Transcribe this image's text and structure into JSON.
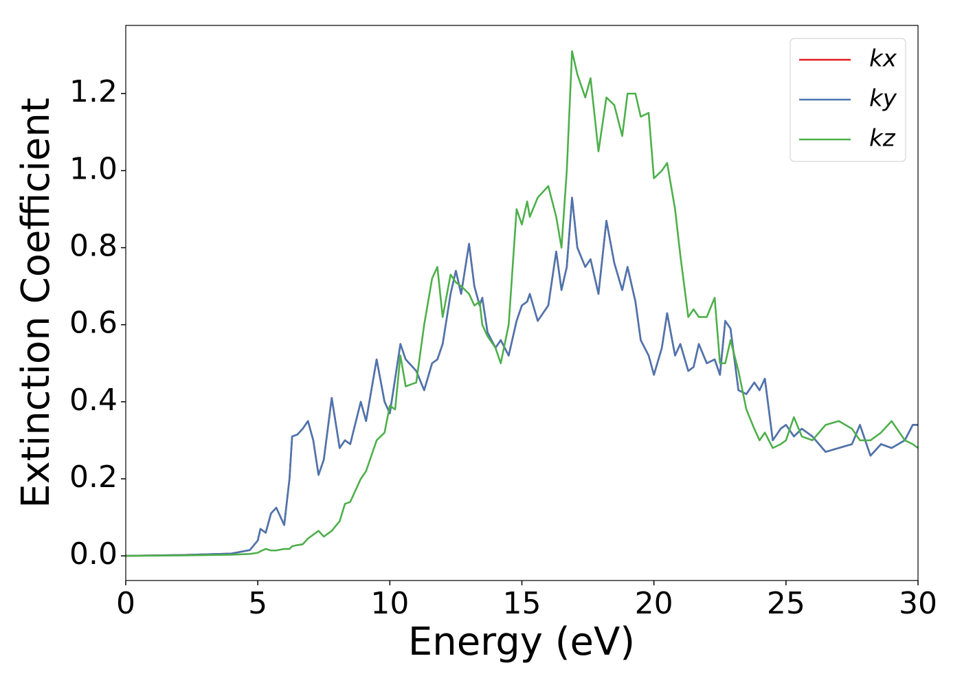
{
  "chart_data": {
    "type": "line",
    "xlabel": "Energy (eV)",
    "ylabel": "Extinction Coefficient",
    "xlim": [
      0,
      30
    ],
    "ylim": [
      -0.064,
      1.377
    ],
    "xticks": [
      0,
      5,
      10,
      15,
      20,
      25,
      30
    ],
    "yticks": [
      {
        "value": 0,
        "label": "0.0"
      },
      0.2,
      0.4,
      0.6,
      0.8,
      {
        "value": 1,
        "label": "1.0"
      },
      1.2
    ],
    "grid": false,
    "legend": "upper right",
    "x": [
      0,
      2,
      4,
      4.7,
      5.0,
      5.1,
      5.3,
      5.5,
      5.7,
      6.0,
      6.2,
      6.3,
      6.5,
      6.7,
      6.9,
      7.1,
      7.3,
      7.5,
      7.8,
      8.1,
      8.3,
      8.5,
      8.9,
      9.1,
      9.5,
      9.8,
      10,
      10.2,
      10.4,
      10.6,
      11,
      11.3,
      11.6,
      11.8,
      12,
      12.3,
      12.5,
      12.7,
      13,
      13.2,
      13.4,
      13.5,
      13.7,
      14,
      14.2,
      14.5,
      14.8,
      15,
      15.2,
      15.3,
      15.6,
      16,
      16.3,
      16.5,
      16.7,
      16.9,
      17.1,
      17.4,
      17.6,
      17.9,
      18.2,
      18.5,
      18.8,
      19,
      19.3,
      19.5,
      19.8,
      20,
      20.3,
      20.5,
      20.8,
      21,
      21.3,
      21.5,
      21.7,
      22,
      22.3,
      22.5,
      22.7,
      22.9,
      23.2,
      23.5,
      23.8,
      24,
      24.2,
      24.5,
      24.8,
      25,
      25.3,
      25.6,
      26,
      26.5,
      27,
      27.5,
      27.8,
      28.2,
      28.6,
      29,
      29.5,
      29.8,
      30
    ],
    "series": [
      {
        "name": "kx",
        "color": "#e41a1c",
        "values": [
          0,
          0.002,
          0.006,
          0.015,
          0.04,
          0.07,
          0.06,
          0.11,
          0.125,
          0.08,
          0.2,
          0.31,
          0.315,
          0.33,
          0.35,
          0.3,
          0.21,
          0.25,
          0.41,
          0.28,
          0.3,
          0.29,
          0.4,
          0.35,
          0.51,
          0.4,
          0.37,
          0.46,
          0.55,
          0.51,
          0.48,
          0.43,
          0.5,
          0.51,
          0.55,
          0.68,
          0.74,
          0.68,
          0.81,
          0.7,
          0.65,
          0.67,
          0.58,
          0.54,
          0.56,
          0.52,
          0.61,
          0.65,
          0.66,
          0.68,
          0.61,
          0.65,
          0.79,
          0.69,
          0.75,
          0.93,
          0.8,
          0.75,
          0.77,
          0.68,
          0.87,
          0.76,
          0.69,
          0.75,
          0.66,
          0.56,
          0.52,
          0.47,
          0.54,
          0.63,
          0.52,
          0.55,
          0.48,
          0.49,
          0.55,
          0.5,
          0.51,
          0.47,
          0.61,
          0.59,
          0.43,
          0.42,
          0.45,
          0.43,
          0.46,
          0.3,
          0.33,
          0.34,
          0.31,
          0.33,
          0.31,
          0.27,
          0.28,
          0.29,
          0.34,
          0.26,
          0.29,
          0.28,
          0.3,
          0.34,
          0.34
        ]
      },
      {
        "name": "ky",
        "color": "#4a76b0",
        "values": [
          0,
          0.002,
          0.006,
          0.015,
          0.04,
          0.07,
          0.06,
          0.11,
          0.125,
          0.08,
          0.2,
          0.31,
          0.315,
          0.33,
          0.35,
          0.3,
          0.21,
          0.25,
          0.41,
          0.28,
          0.3,
          0.29,
          0.4,
          0.35,
          0.51,
          0.4,
          0.37,
          0.46,
          0.55,
          0.51,
          0.48,
          0.43,
          0.5,
          0.51,
          0.55,
          0.68,
          0.74,
          0.68,
          0.81,
          0.7,
          0.65,
          0.67,
          0.58,
          0.54,
          0.56,
          0.52,
          0.61,
          0.65,
          0.66,
          0.68,
          0.61,
          0.65,
          0.79,
          0.69,
          0.75,
          0.93,
          0.8,
          0.75,
          0.77,
          0.68,
          0.87,
          0.76,
          0.69,
          0.75,
          0.66,
          0.56,
          0.52,
          0.47,
          0.54,
          0.63,
          0.52,
          0.55,
          0.48,
          0.49,
          0.55,
          0.5,
          0.51,
          0.47,
          0.61,
          0.59,
          0.43,
          0.42,
          0.45,
          0.43,
          0.46,
          0.3,
          0.33,
          0.34,
          0.31,
          0.33,
          0.31,
          0.27,
          0.28,
          0.29,
          0.34,
          0.26,
          0.29,
          0.28,
          0.3,
          0.34,
          0.34
        ]
      },
      {
        "name": "kz",
        "color": "#4daf4a",
        "values": [
          0,
          0.001,
          0.003,
          0.005,
          0.008,
          0.012,
          0.018,
          0.014,
          0.014,
          0.018,
          0.018,
          0.025,
          0.028,
          0.03,
          0.045,
          0.055,
          0.065,
          0.05,
          0.065,
          0.09,
          0.135,
          0.14,
          0.2,
          0.22,
          0.3,
          0.32,
          0.39,
          0.38,
          0.52,
          0.44,
          0.45,
          0.6,
          0.72,
          0.75,
          0.62,
          0.73,
          0.71,
          0.7,
          0.68,
          0.65,
          0.66,
          0.6,
          0.57,
          0.54,
          0.5,
          0.6,
          0.9,
          0.86,
          0.92,
          0.88,
          0.93,
          0.96,
          0.88,
          0.8,
          1.0,
          1.31,
          1.25,
          1.19,
          1.24,
          1.05,
          1.19,
          1.17,
          1.09,
          1.2,
          1.2,
          1.14,
          1.15,
          0.98,
          1.0,
          1.02,
          0.9,
          0.78,
          0.62,
          0.64,
          0.62,
          0.62,
          0.67,
          0.5,
          0.5,
          0.56,
          0.48,
          0.38,
          0.33,
          0.3,
          0.32,
          0.28,
          0.29,
          0.3,
          0.36,
          0.31,
          0.3,
          0.34,
          0.35,
          0.33,
          0.3,
          0.3,
          0.32,
          0.35,
          0.3,
          0.29,
          0.28
        ]
      }
    ]
  }
}
